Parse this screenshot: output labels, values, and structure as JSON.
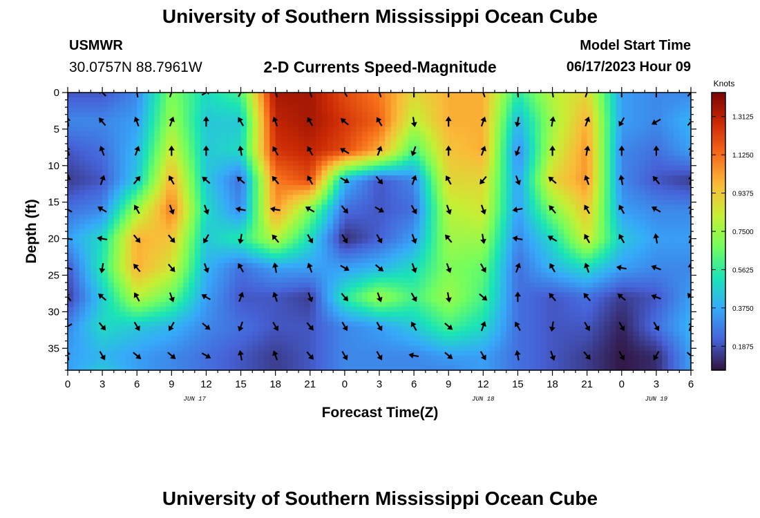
{
  "header": {
    "title": "University of Southern Mississippi Ocean Cube",
    "station_id": "USMWR",
    "station_coords": "30.0757N  88.7961W",
    "plot_title": "2-D Currents Speed-Magnitude",
    "model_label": "Model Start Time",
    "model_time": "06/17/2023 Hour 09"
  },
  "footer": {
    "title": "University of Southern Mississippi Ocean Cube"
  },
  "colormap": [
    "#30123b",
    "#4662d7",
    "#36aaf9",
    "#1ae4b6",
    "#72fe5e",
    "#c7ef34",
    "#fabb39",
    "#f66b19",
    "#cb2a04",
    "#7a0403"
  ],
  "chart_data": {
    "type": "heatmap",
    "title": "2-D Currents Speed-Magnitude",
    "xlabel": "Forecast Time(Z)",
    "ylabel": "Depth (ft)",
    "colorbar_label": "Knots",
    "x_range_hours": [
      0,
      54
    ],
    "y_range": [
      0,
      38
    ],
    "x_ticks": [
      {
        "hour": 0,
        "label": "0"
      },
      {
        "hour": 3,
        "label": "3"
      },
      {
        "hour": 6,
        "label": "6"
      },
      {
        "hour": 9,
        "label": "9"
      },
      {
        "hour": 12,
        "label": "12"
      },
      {
        "hour": 15,
        "label": "15"
      },
      {
        "hour": 18,
        "label": "18"
      },
      {
        "hour": 21,
        "label": "21"
      },
      {
        "hour": 24,
        "label": "0"
      },
      {
        "hour": 27,
        "label": "3"
      },
      {
        "hour": 30,
        "label": "6"
      },
      {
        "hour": 33,
        "label": "9"
      },
      {
        "hour": 36,
        "label": "12"
      },
      {
        "hour": 39,
        "label": "15"
      },
      {
        "hour": 42,
        "label": "18"
      },
      {
        "hour": 45,
        "label": "21"
      },
      {
        "hour": 48,
        "label": "0"
      },
      {
        "hour": 51,
        "label": "3"
      },
      {
        "hour": 54,
        "label": "6"
      }
    ],
    "y_ticks": [
      0,
      5,
      10,
      15,
      20,
      25,
      30,
      35
    ],
    "date_labels": [
      {
        "hour": 11,
        "label": "JUN 17"
      },
      {
        "hour": 36,
        "label": "JUN 18"
      },
      {
        "hour": 51,
        "label": "JUN 19"
      }
    ],
    "colorbar": {
      "min": 0.07,
      "max": 1.43,
      "ticks": [
        "0.1875",
        "0.3750",
        "0.5625",
        "0.7500",
        "0.9375",
        "1.1250",
        "1.3125"
      ]
    },
    "depths": [
      0,
      4,
      8,
      12,
      16,
      20,
      24,
      28,
      32,
      36,
      38
    ],
    "hours": [
      0,
      3,
      6,
      9,
      12,
      15,
      18,
      21,
      24,
      27,
      30,
      33,
      36,
      39,
      42,
      45,
      48,
      51,
      54
    ],
    "speed_knots": [
      [
        0.2,
        0.2,
        0.3,
        0.7,
        0.5,
        0.6,
        1.35,
        1.35,
        1.2,
        1.1,
        0.9,
        1.0,
        1.0,
        0.55,
        0.8,
        0.9,
        0.35,
        0.3,
        0.3
      ],
      [
        0.3,
        0.3,
        0.35,
        0.75,
        0.45,
        0.45,
        1.3,
        1.35,
        1.25,
        1.15,
        0.8,
        1.0,
        1.0,
        0.4,
        0.75,
        1.0,
        0.35,
        0.3,
        0.4
      ],
      [
        0.2,
        0.25,
        0.4,
        0.85,
        0.45,
        0.5,
        1.25,
        1.3,
        1.2,
        1.0,
        0.6,
        0.95,
        1.0,
        0.3,
        0.8,
        1.05,
        0.3,
        0.25,
        0.35
      ],
      [
        0.15,
        0.2,
        0.45,
        1.0,
        0.45,
        0.25,
        1.1,
        1.2,
        0.4,
        0.2,
        0.3,
        0.9,
        0.9,
        0.35,
        0.9,
        1.05,
        0.3,
        0.2,
        0.15
      ],
      [
        0.25,
        0.3,
        0.75,
        1.1,
        0.5,
        0.3,
        1.05,
        0.7,
        0.25,
        0.2,
        0.25,
        0.8,
        0.85,
        0.35,
        0.7,
        0.95,
        0.35,
        0.3,
        0.3
      ],
      [
        0.35,
        0.5,
        1.0,
        0.95,
        0.45,
        0.55,
        0.8,
        0.5,
        0.12,
        0.22,
        0.35,
        0.75,
        0.75,
        0.3,
        0.5,
        0.85,
        0.45,
        0.35,
        0.35
      ],
      [
        0.2,
        0.55,
        1.0,
        0.85,
        0.4,
        0.25,
        0.35,
        0.35,
        0.35,
        0.4,
        0.5,
        0.7,
        0.65,
        0.25,
        0.4,
        0.5,
        0.35,
        0.3,
        0.3
      ],
      [
        0.15,
        0.45,
        0.8,
        0.65,
        0.35,
        0.2,
        0.2,
        0.15,
        0.55,
        0.75,
        0.6,
        0.75,
        0.6,
        0.25,
        0.2,
        0.25,
        0.15,
        0.2,
        0.35
      ],
      [
        0.3,
        0.5,
        0.45,
        0.4,
        0.3,
        0.25,
        0.2,
        0.2,
        0.3,
        0.35,
        0.45,
        0.6,
        0.5,
        0.25,
        0.2,
        0.2,
        0.1,
        0.25,
        0.4
      ],
      [
        0.35,
        0.4,
        0.35,
        0.3,
        0.25,
        0.2,
        0.15,
        0.2,
        0.3,
        0.3,
        0.3,
        0.35,
        0.35,
        0.25,
        0.2,
        0.15,
        0.08,
        0.12,
        0.35
      ],
      [
        0.35,
        0.45,
        0.35,
        0.3,
        0.25,
        0.2,
        0.15,
        0.2,
        0.3,
        0.3,
        0.3,
        0.3,
        0.35,
        0.25,
        0.2,
        0.15,
        0.08,
        0.12,
        0.35
      ]
    ],
    "arrow_depths": [
      0,
      4,
      8,
      12,
      16,
      20,
      24,
      28,
      32,
      36
    ],
    "arrow_direction_deg": [
      [
        180,
        135,
        170,
        200,
        240,
        210,
        160,
        160,
        150,
        160,
        180,
        180,
        160,
        175,
        170,
        200,
        180,
        180,
        220
      ],
      [
        170,
        140,
        160,
        200,
        180,
        150,
        160,
        150,
        130,
        150,
        350,
        180,
        200,
        10,
        190,
        200,
        30,
        60,
        220
      ],
      [
        160,
        160,
        200,
        180,
        180,
        170,
        150,
        150,
        120,
        200,
        20,
        180,
        200,
        20,
        180,
        190,
        180,
        180,
        190
      ],
      [
        190,
        200,
        220,
        150,
        130,
        130,
        140,
        150,
        300,
        320,
        200,
        150,
        40,
        340,
        130,
        160,
        170,
        140,
        190
      ],
      [
        120,
        120,
        150,
        340,
        340,
        100,
        100,
        120,
        320,
        300,
        330,
        340,
        340,
        80,
        140,
        150,
        150,
        120,
        190
      ],
      [
        100,
        100,
        320,
        320,
        30,
        10,
        140,
        330,
        330,
        330,
        340,
        140,
        350,
        100,
        120,
        150,
        150,
        170,
        200
      ],
      [
        110,
        10,
        140,
        320,
        340,
        150,
        170,
        160,
        300,
        310,
        340,
        340,
        330,
        200,
        150,
        160,
        100,
        110,
        180
      ],
      [
        140,
        130,
        150,
        340,
        120,
        200,
        160,
        340,
        320,
        340,
        330,
        350,
        310,
        180,
        140,
        140,
        130,
        110,
        140
      ],
      [
        60,
        320,
        330,
        30,
        310,
        20,
        330,
        320,
        330,
        330,
        150,
        310,
        200,
        150,
        10,
        330,
        330,
        330,
        200
      ],
      [
        170,
        330,
        310,
        310,
        300,
        170,
        160,
        320,
        330,
        330,
        100,
        310,
        330,
        170,
        340,
        320,
        330,
        30,
        310
      ]
    ]
  }
}
